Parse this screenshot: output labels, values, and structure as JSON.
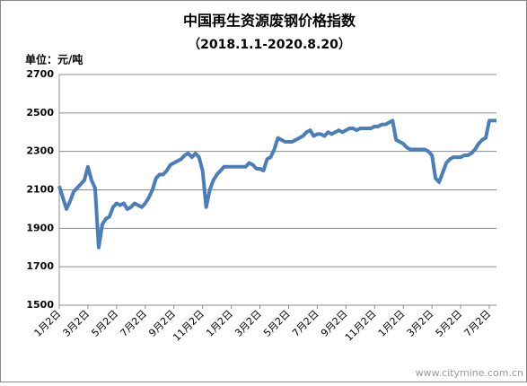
{
  "chart_data": {
    "type": "line",
    "title": "中国再生资源废钢价格指数",
    "subtitle": "（2018.1.1-2020.8.20）",
    "unit": "单位：元/吨",
    "watermark": "www.citymine.com.cn",
    "color": "#4a7ebb",
    "grid": true,
    "ylim": [
      1500,
      2700
    ],
    "yticks": [
      1500,
      1700,
      1900,
      2100,
      2300,
      2500,
      2700
    ],
    "categories": [
      "1月2日",
      null,
      null,
      null,
      null,
      null,
      null,
      null,
      "3月2日",
      null,
      null,
      null,
      null,
      null,
      null,
      null,
      "5月2日",
      null,
      null,
      null,
      null,
      null,
      null,
      null,
      "7月2日",
      null,
      null,
      null,
      null,
      null,
      null,
      null,
      "9月2日",
      null,
      null,
      null,
      null,
      null,
      null,
      null,
      "11月2日",
      null,
      null,
      null,
      null,
      null,
      null,
      null,
      "1月2日",
      null,
      null,
      null,
      null,
      null,
      null,
      null,
      "3月2日",
      null,
      null,
      null,
      null,
      null,
      null,
      null,
      "5月2日",
      null,
      null,
      null,
      null,
      null,
      null,
      null,
      "7月2日",
      null,
      null,
      null,
      null,
      null,
      null,
      null,
      "9月2日",
      null,
      null,
      null,
      null,
      null,
      null,
      null,
      "11月2日",
      null,
      null,
      null,
      null,
      null,
      null,
      null,
      "1月2日",
      null,
      null,
      null,
      null,
      null,
      null,
      null,
      "3月2日",
      null,
      null,
      null,
      null,
      null,
      null,
      null,
      "5月2日",
      null,
      null,
      null,
      null,
      null,
      null,
      null,
      "7月2日",
      null,
      null
    ],
    "values": [
      2120,
      2060,
      2000,
      2040,
      2090,
      2110,
      2130,
      2150,
      2220,
      2150,
      2110,
      1800,
      1920,
      1950,
      1960,
      2010,
      2030,
      2020,
      2030,
      2000,
      2010,
      2030,
      2020,
      2010,
      2030,
      2060,
      2100,
      2160,
      2180,
      2180,
      2200,
      2230,
      2240,
      2250,
      2260,
      2280,
      2290,
      2270,
      2290,
      2270,
      2200,
      2010,
      2100,
      2150,
      2180,
      2200,
      2220,
      2220,
      2220,
      2220,
      2220,
      2220,
      2220,
      2240,
      2230,
      2210,
      2210,
      2200,
      2260,
      2270,
      2310,
      2370,
      2360,
      2350,
      2350,
      2350,
      2360,
      2370,
      2380,
      2400,
      2410,
      2380,
      2390,
      2390,
      2380,
      2400,
      2390,
      2400,
      2410,
      2400,
      2410,
      2420,
      2420,
      2410,
      2420,
      2420,
      2420,
      2420,
      2430,
      2430,
      2440,
      2440,
      2450,
      2460,
      2360,
      2350,
      2340,
      2320,
      2310,
      2310,
      2310,
      2310,
      2310,
      2300,
      2280,
      2160,
      2140,
      2190,
      2240,
      2260,
      2270,
      2270,
      2270,
      2280,
      2280,
      2290,
      2310,
      2340,
      2360,
      2370,
      2460,
      2460,
      2460
    ]
  }
}
